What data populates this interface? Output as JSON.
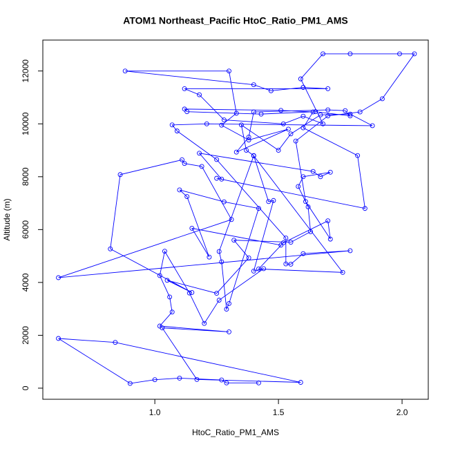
{
  "chart_data": {
    "type": "line",
    "markers": true,
    "color": "#0000ff",
    "title": "ATOM1 Northeast_Pacific HtoC_Ratio_PM1_AMS",
    "x_label": "HtoC_Ratio_PM1_AMS",
    "y_label": "Altitude (m)",
    "xlim": [
      0.547,
      2.106
    ],
    "ylim": [
      -420,
      13170
    ],
    "xticks": [
      {
        "value": 1,
        "label": "1.0"
      },
      {
        "value": 1.5,
        "label": "1.5"
      },
      {
        "value": 2,
        "label": "2.0"
      }
    ],
    "yticks": [
      0,
      2000,
      4000,
      6000,
      8000,
      10000,
      12000
    ],
    "x": [
      1.42,
      1.29,
      1.27,
      1.1,
      1.0,
      0.9,
      0.61,
      0.84,
      1.59,
      1.17,
      1.03,
      1.3,
      1.02,
      1.07,
      1.06,
      1.02,
      1.04,
      1.14,
      1.2,
      1.26,
      1.44,
      1.4,
      1.48,
      1.46,
      1.4,
      1.37,
      1.35,
      1.5,
      1.55,
      1.67,
      1.79,
      1.88,
      1.21,
      1.07,
      1.09,
      1.25,
      1.53,
      1.53,
      1.55,
      1.6,
      1.79,
      0.61,
      1.31,
      1.19,
      1.12,
      1.11,
      0.86,
      0.82,
      1.15,
      1.05,
      1.25,
      1.38,
      1.32,
      1.55,
      1.63,
      1.62,
      1.58,
      1.6,
      1.71,
      1.67,
      1.64,
      1.18,
      1.27,
      1.25,
      1.85,
      1.82,
      1.6,
      1.64,
      1.51,
      1.12,
      1.13,
      1.43,
      1.65,
      1.79,
      1.77,
      1.7,
      1.4,
      1.38,
      1.33,
      1.54,
      1.38,
      1.27,
      1.33,
      1.3,
      0.88,
      1.4,
      1.47,
      1.6,
      1.7,
      1.12,
      1.18,
      1.28,
      1.52,
      1.6,
      1.68,
      1.59,
      1.68,
      1.79,
      1.99,
      2.05,
      1.92,
      1.83,
      1.7,
      1.57,
      1.61,
      1.71,
      1.7,
      1.52,
      1.42,
      1.76,
      1.4,
      1.26,
      1.27,
      1.29,
      1.3,
      1.42,
      1.28,
      1.1,
      1.13,
      1.22,
      1.15,
      1.51
    ],
    "values": [
      200,
      200,
      310,
      380,
      320,
      180,
      1880,
      1730,
      220,
      330,
      2280,
      2130,
      2350,
      2880,
      3450,
      4260,
      5180,
      3600,
      2450,
      3330,
      4520,
      4430,
      7100,
      7060,
      8800,
      9000,
      9960,
      9000,
      9620,
      10340,
      10370,
      9930,
      10000,
      9960,
      9730,
      8650,
      5680,
      4700,
      4690,
      5090,
      5200,
      4180,
      6380,
      8390,
      8500,
      8640,
      8080,
      5270,
      3620,
      4080,
      3590,
      4930,
      5600,
      5520,
      5920,
      6860,
      7630,
      8000,
      8170,
      8000,
      8200,
      8890,
      7910,
      7940,
      6800,
      8800,
      9850,
      10450,
      10510,
      10560,
      10460,
      10370,
      10460,
      10300,
      10500,
      10530,
      10450,
      9500,
      8930,
      9800,
      9390,
      9950,
      10400,
      12000,
      12000,
      11480,
      11250,
      11380,
      11330,
      11330,
      11100,
      10150,
      10000,
      10290,
      10000,
      11700,
      12650,
      12650,
      12650,
      12650,
      10950,
      10450,
      10300,
      9350,
      7060,
      5640,
      6330,
      5500,
      4510,
      4380,
      8790,
      5170,
      4780,
      2990,
      3200,
      6800,
      7050,
      7500,
      7250,
      4960,
      6050,
      5410
    ]
  }
}
